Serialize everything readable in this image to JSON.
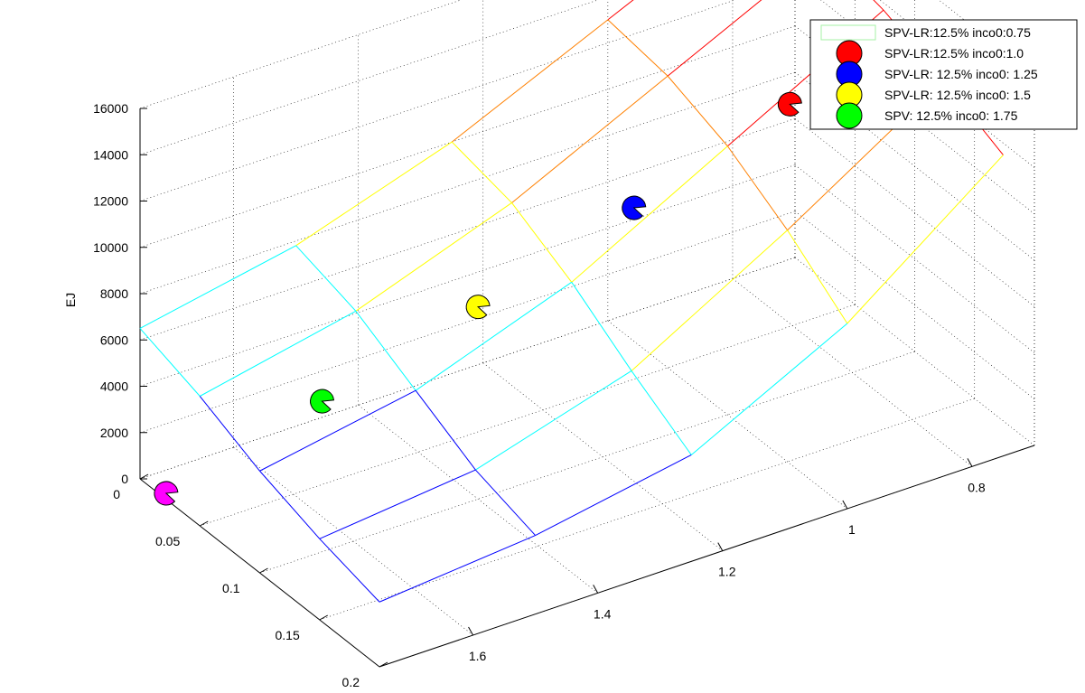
{
  "chart_data": {
    "type": "surface3d",
    "zlabel": "EJ",
    "x_ticks": [
      "0",
      "0.05",
      "0.1",
      "0.15",
      "0.2"
    ],
    "y_ticks": [
      "1.6",
      "1.4",
      "1.2",
      "1",
      "0.8"
    ],
    "z_ticks": [
      "0",
      "2000",
      "4000",
      "6000",
      "8000",
      "10000",
      "12000",
      "14000",
      "16000"
    ],
    "xlim": [
      0,
      0.2
    ],
    "ylim": [
      0.7,
      1.75
    ],
    "zlim": [
      0,
      16000
    ],
    "grid": true,
    "legend_position": "top-right",
    "legend": [
      {
        "label": "SPV-LR:12.5% inco0:0.75",
        "marker": "rect",
        "color": "#a6f0a6"
      },
      {
        "label": "SPV-LR:12.5% inco0:1.0",
        "marker": "circle",
        "color": "#ff0000"
      },
      {
        "label": "SPV-LR: 12.5% inco0: 1.25",
        "marker": "circle",
        "color": "#0000ff"
      },
      {
        "label": "SPV-LR: 12.5% inco0: 1.5",
        "marker": "circle",
        "color": "#ffff00"
      },
      {
        "label": "SPV: 12.5% inco0: 1.75",
        "marker": "circle",
        "color": "#00ff00"
      }
    ],
    "surface": {
      "x_values": [
        0,
        0.05,
        0.1,
        0.15,
        0.2
      ],
      "y_values": [
        0.75,
        1.0,
        1.25,
        1.5,
        1.75
      ],
      "z": [
        [
          16000,
          15800,
          15200,
          14200,
          13000
        ],
        [
          13000,
          12600,
          11600,
          10000,
          8000
        ],
        [
          10000,
          9400,
          8000,
          6200,
          4600
        ],
        [
          7800,
          7000,
          5600,
          4200,
          3400
        ],
        [
          6500,
          5600,
          4400,
          3500,
          2800
        ]
      ],
      "colormap": [
        "#0000ff",
        "#00ffff",
        "#ffff00",
        "#ff8000",
        "#ff0000"
      ]
    },
    "markers": [
      {
        "x": 0.1,
        "y": 0.9,
        "z": 12500,
        "color": "#ff0000"
      },
      {
        "x": 0.1,
        "y": 1.15,
        "z": 10300,
        "color": "#0000ff"
      },
      {
        "x": 0.1,
        "y": 1.4,
        "z": 8300,
        "color": "#ffff00"
      },
      {
        "x": 0.1,
        "y": 1.65,
        "z": 6500,
        "color": "#00ff00"
      },
      {
        "x": 0.1,
        "y": 1.9,
        "z": 4800,
        "color": "#ff00ff"
      }
    ]
  }
}
